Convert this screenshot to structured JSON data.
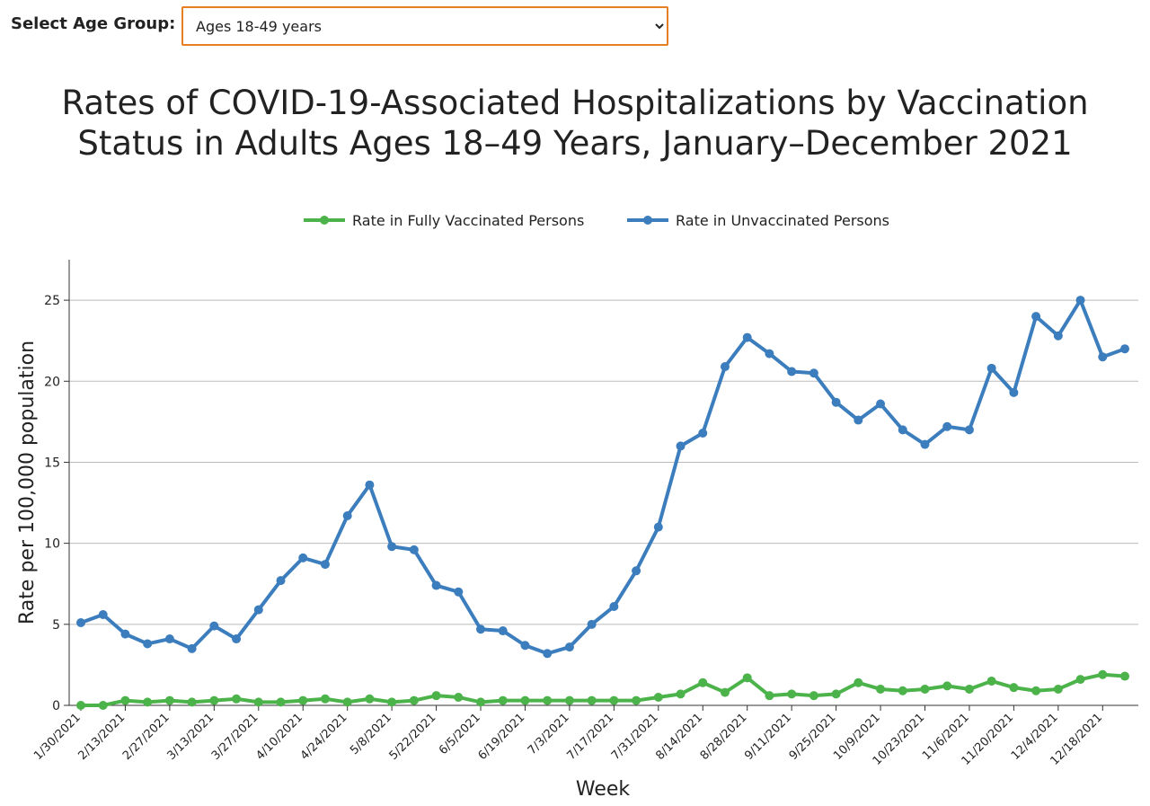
{
  "select": {
    "label": "Select Age Group:",
    "value": "Ages 18-49 years"
  },
  "chart_data": {
    "type": "line",
    "title": "Rates of COVID-19-Associated Hospitalizations by Vaccination Status in Adults Ages 18–49 Years, January–December 2021",
    "xlabel": "Week",
    "ylabel": "Rate per 100,000 population",
    "categories": [
      "1/30/2021",
      null,
      "2/13/2021",
      null,
      "2/27/2021",
      null,
      "3/13/2021",
      null,
      "3/27/2021",
      null,
      "4/10/2021",
      null,
      "4/24/2021",
      null,
      "5/8/2021",
      null,
      "5/22/2021",
      null,
      "6/5/2021",
      null,
      "6/19/2021",
      null,
      "7/3/2021",
      null,
      "7/17/2021",
      null,
      "7/31/2021",
      null,
      "8/14/2021",
      null,
      "8/28/2021",
      null,
      "9/11/2021",
      null,
      "9/25/2021",
      null,
      "10/9/2021",
      null,
      "10/23/2021",
      null,
      "11/6/2021",
      null,
      "11/20/2021",
      null,
      "12/4/2021",
      null,
      "12/18/2021",
      null
    ],
    "series": [
      {
        "name": "Rate in Fully Vaccinated Persons",
        "color": "#4cb34a",
        "values": [
          0,
          0,
          0.3,
          0.2,
          0.3,
          0.2,
          0.3,
          0.4,
          0.2,
          0.2,
          0.3,
          0.4,
          0.2,
          0.4,
          0.2,
          0.3,
          0.6,
          0.5,
          0.2,
          0.3,
          0.3,
          0.3,
          0.3,
          0.3,
          0.3,
          0.3,
          0.5,
          0.7,
          1.4,
          0.8,
          1.7,
          0.6,
          0.7,
          0.6,
          0.7,
          1.4,
          1.0,
          0.9,
          1.0,
          1.2,
          1.0,
          1.5,
          1.1,
          0.9,
          1.0,
          1.6,
          1.9,
          1.8
        ]
      },
      {
        "name": "Rate in Unvaccinated Persons",
        "color": "#3b7dbd",
        "values": [
          5.1,
          5.6,
          4.4,
          3.8,
          4.1,
          3.5,
          4.9,
          4.1,
          5.9,
          7.7,
          9.1,
          8.7,
          11.7,
          13.6,
          9.8,
          9.6,
          7.4,
          7.0,
          4.7,
          4.6,
          3.7,
          3.2,
          3.6,
          5.0,
          6.1,
          8.3,
          11.0,
          16.0,
          16.8,
          20.9,
          22.7,
          21.7,
          20.6,
          20.5,
          18.7,
          17.6,
          18.6,
          17.0,
          16.1,
          17.2,
          17.0,
          20.8,
          19.3,
          24.0,
          22.8,
          25.0,
          21.5,
          22.0
        ]
      }
    ],
    "ylim": [
      0,
      27.5
    ],
    "yticks": [
      0,
      5,
      10,
      15,
      20,
      25
    ],
    "grid": true,
    "legend": "top"
  }
}
